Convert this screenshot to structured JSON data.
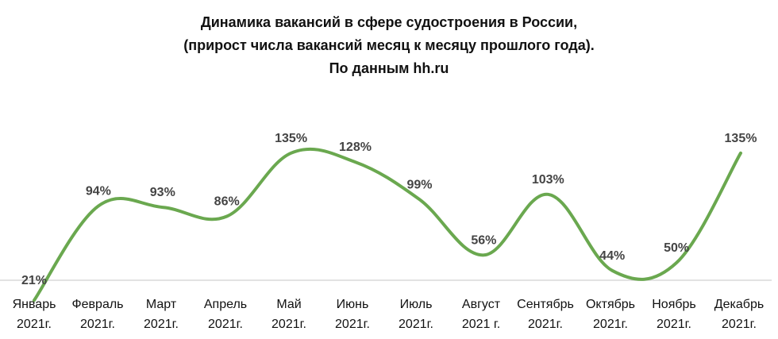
{
  "chart_data": {
    "type": "line",
    "title_lines": [
      "Динамика вакансий в сфере судостроения в России,",
      "(прирост числа вакансий месяц к месяцу прошлого года).",
      "По данным hh.ru"
    ],
    "categories": [
      [
        "Январь",
        "2021г."
      ],
      [
        "Февраль",
        "2021г."
      ],
      [
        "Март",
        "2021г."
      ],
      [
        "Апрель",
        "2021г."
      ],
      [
        "Май",
        "2021г."
      ],
      [
        "Июнь",
        "2021г."
      ],
      [
        "Июль",
        "2021г."
      ],
      [
        "Август",
        "2021 г."
      ],
      [
        "Сентябрь",
        "2021г."
      ],
      [
        "Октябрь",
        "2021г."
      ],
      [
        "Ноябрь",
        "2021г."
      ],
      [
        "Декабрь",
        "2021г."
      ]
    ],
    "values": [
      21,
      94,
      93,
      86,
      135,
      128,
      99,
      56,
      103,
      44,
      50,
      135
    ],
    "value_labels": [
      "21%",
      "94%",
      "93%",
      "86%",
      "135%",
      "128%",
      "99%",
      "56%",
      "103%",
      "44%",
      "50%",
      "135%"
    ],
    "series_color": "#6aa84f",
    "axis_color": "#d9d9d9",
    "smooth": true,
    "grid": false,
    "legend": "none"
  }
}
